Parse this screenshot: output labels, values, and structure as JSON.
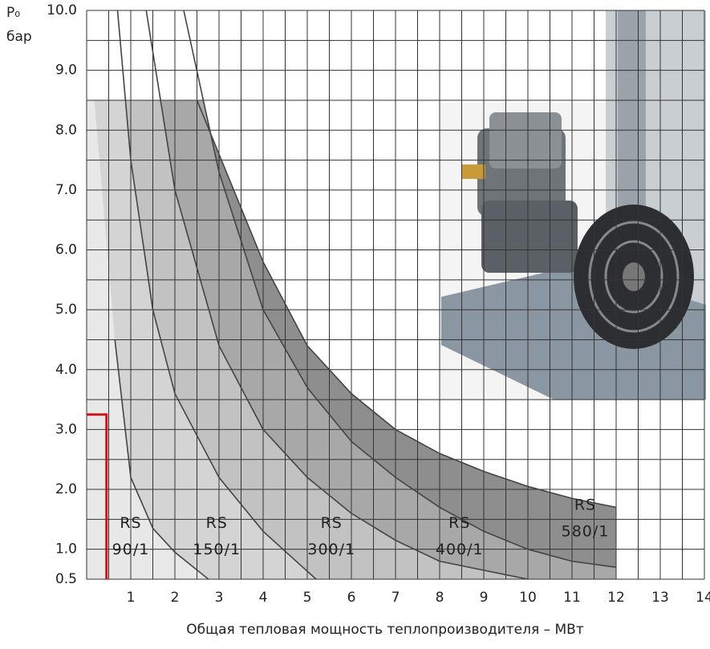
{
  "chart_data": {
    "type": "line",
    "y_label": "P₀",
    "y_unit": "бар",
    "x_label": "Общая тепловая мощность теплопроизводителя – МВт",
    "xlim": [
      0,
      14
    ],
    "ylim": [
      0.5,
      10
    ],
    "xticks": [
      1,
      2,
      3,
      4,
      5,
      6,
      7,
      8,
      9,
      10,
      11,
      12,
      13,
      14
    ],
    "xminorticks": [
      0,
      0.5,
      1.5,
      2.5,
      3.5,
      4.5,
      5.5,
      6.5,
      7.5,
      8.5,
      9.5,
      10.5,
      11.5,
      12.5,
      13.5
    ],
    "yticks": [
      0.5,
      {
        "value": 1,
        "label": "1.0"
      },
      {
        "value": 2,
        "label": "2.0"
      },
      {
        "value": 3,
        "label": "3.0"
      },
      {
        "value": 4,
        "label": "4.0"
      },
      {
        "value": 5,
        "label": "5.0"
      },
      {
        "value": 6,
        "label": "6.0"
      },
      {
        "value": 7,
        "label": "7.0"
      },
      {
        "value": 8,
        "label": "8.0"
      },
      {
        "value": 9,
        "label": "9.0"
      },
      {
        "value": 10,
        "label": "10.0"
      }
    ],
    "yminorticks": [
      1.5,
      2.5,
      3.5,
      4.5,
      5.5,
      6.5,
      7.5,
      8.5,
      9.5
    ],
    "region_ymax": 8.5,
    "line_color": "#444444",
    "series": [
      {
        "name": [
          "RS",
          "90/1"
        ],
        "color": "#e8e8e8",
        "label_at": [
          1.0,
          1.15
        ],
        "x": [
          0.64,
          1.0,
          1.5,
          2.0,
          2.76
        ],
        "values": [
          4.5,
          2.2,
          1.35,
          0.95,
          0.5
        ]
      },
      {
        "name": [
          "RS",
          "150/1"
        ],
        "color": "#d4d4d4",
        "label_at": [
          2.95,
          1.15
        ],
        "x": [
          0.7,
          1.0,
          1.5,
          2.0,
          3.0,
          4.0,
          5.2
        ],
        "values": [
          10,
          7.5,
          5.0,
          3.6,
          2.2,
          1.3,
          0.5
        ]
      },
      {
        "name": [
          "RS",
          "300/1"
        ],
        "color": "#c2c2c2",
        "label_at": [
          5.55,
          1.15
        ],
        "x": [
          1.35,
          2.0,
          3.0,
          4.0,
          5.0,
          6.0,
          7.0,
          8.0,
          10.0
        ],
        "values": [
          10,
          7.0,
          4.4,
          3.0,
          2.2,
          1.6,
          1.15,
          0.8,
          0.5
        ]
      },
      {
        "name": [
          "RS",
          "400/1"
        ],
        "color": "#a8a8a8",
        "label_at": [
          8.45,
          1.15
        ],
        "x": [
          2.2,
          3.0,
          4.0,
          5.0,
          6.0,
          7.0,
          8.0,
          9.0,
          10.0,
          11.0,
          12.0
        ],
        "values": [
          10,
          7.3,
          5.0,
          3.7,
          2.8,
          2.2,
          1.7,
          1.3,
          1.0,
          0.8,
          0.7
        ]
      },
      {
        "name": [
          "RS",
          "580/1"
        ],
        "color": "#8e8e8e",
        "label_at": [
          11.3,
          1.45
        ],
        "x": [
          2.5,
          3.0,
          4.0,
          5.0,
          6.0,
          7.0,
          8.0,
          9.0,
          10.0,
          11.0,
          12.0
        ],
        "values": [
          8.5,
          7.6,
          5.8,
          4.4,
          3.6,
          3.0,
          2.6,
          2.3,
          2.05,
          1.85,
          1.7
        ]
      }
    ],
    "highlight": {
      "x": 0.45,
      "y": 3.25,
      "color": "#d0121b"
    }
  }
}
